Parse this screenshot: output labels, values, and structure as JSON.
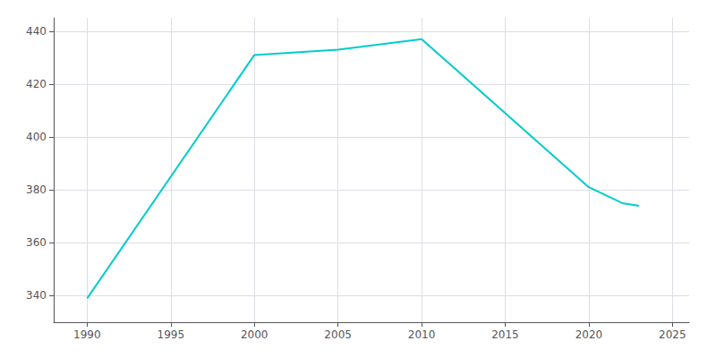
{
  "chart_data": {
    "type": "line",
    "x": [
      1990,
      2000,
      2005,
      2010,
      2020,
      2022,
      2023
    ],
    "values": [
      339,
      431,
      433,
      437,
      381,
      375,
      374
    ],
    "color": "#00CCCC",
    "xlim": [
      1988,
      2026
    ],
    "ylim": [
      330,
      445
    ],
    "xticks": [
      1990,
      1995,
      2000,
      2005,
      2010,
      2015,
      2020,
      2025
    ],
    "yticks": [
      340,
      360,
      380,
      400,
      420,
      440
    ],
    "grid": true
  }
}
